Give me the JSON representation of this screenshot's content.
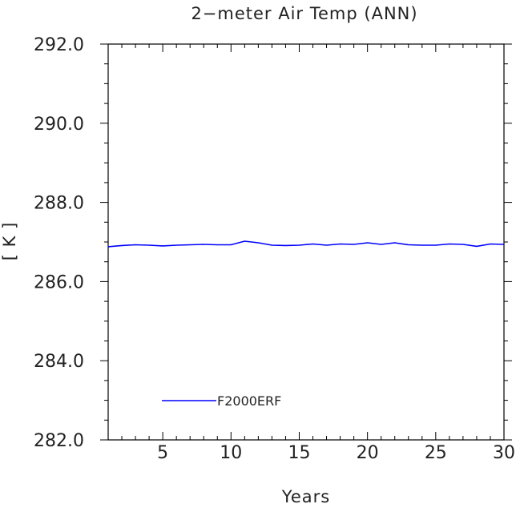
{
  "chart_data": {
    "type": "line",
    "title": "2−meter Air Temp (ANN)",
    "xlabel": "Years",
    "ylabel": "[ K ]",
    "xlim": [
      1,
      30
    ],
    "ylim": [
      282.0,
      292.0
    ],
    "x_ticks": [
      5,
      10,
      15,
      20,
      25,
      30
    ],
    "x_tick_labels": [
      "5",
      "10",
      "15",
      "20",
      "25",
      "30"
    ],
    "y_ticks": [
      282.0,
      284.0,
      286.0,
      288.0,
      290.0,
      292.0
    ],
    "y_tick_labels": [
      "282.0",
      "284.0",
      "286.0",
      "288.0",
      "290.0",
      "292.0"
    ],
    "grid": false,
    "legend_position": "bottom-left",
    "series": [
      {
        "name": "F2000ERF",
        "color": "#0000ff",
        "x": [
          1,
          2,
          3,
          4,
          5,
          6,
          7,
          8,
          9,
          10,
          11,
          12,
          13,
          14,
          15,
          16,
          17,
          18,
          19,
          20,
          21,
          22,
          23,
          24,
          25,
          26,
          27,
          28,
          29,
          30
        ],
        "values": [
          286.88,
          286.91,
          286.93,
          286.92,
          286.9,
          286.92,
          286.93,
          286.94,
          286.93,
          286.93,
          287.02,
          286.98,
          286.92,
          286.91,
          286.92,
          286.95,
          286.92,
          286.95,
          286.94,
          286.98,
          286.94,
          286.98,
          286.93,
          286.92,
          286.92,
          286.95,
          286.94,
          286.89,
          286.95,
          286.94
        ]
      }
    ]
  }
}
